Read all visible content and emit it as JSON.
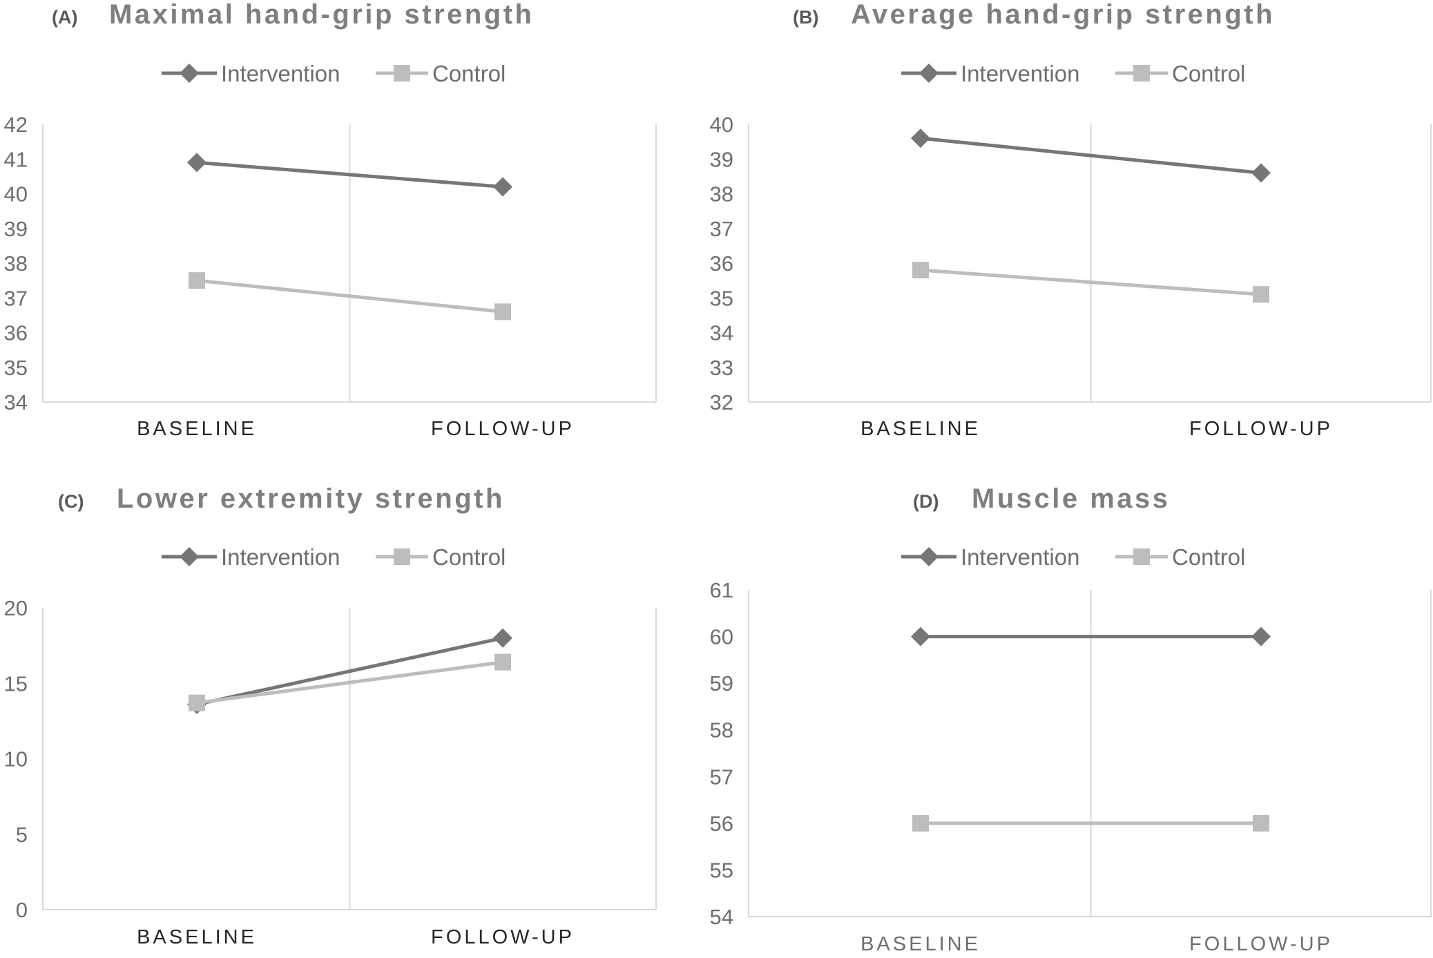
{
  "colors": {
    "intervention": "#767676",
    "control": "#bdbdbd",
    "axis": "#d9d9d9"
  },
  "chart_data": [
    {
      "type": "line",
      "panel": "(A)",
      "title": "Maximal hand-grip strength",
      "categories": [
        "BASELINE",
        "FOLLOW-UP"
      ],
      "series": [
        {
          "name": "Intervention",
          "values": [
            40.9,
            40.2
          ],
          "marker": "diamond"
        },
        {
          "name": "Control",
          "values": [
            37.5,
            36.6
          ],
          "marker": "square"
        }
      ],
      "ylim": [
        34,
        42
      ],
      "yticks": [
        34,
        35,
        36,
        37,
        38,
        39,
        40,
        41,
        42
      ],
      "legend": "top-center"
    },
    {
      "type": "line",
      "panel": "(B)",
      "title": "Average hand-grip strength",
      "categories": [
        "BASELINE",
        "FOLLOW-UP"
      ],
      "series": [
        {
          "name": "Intervention",
          "values": [
            39.6,
            38.6
          ],
          "marker": "diamond"
        },
        {
          "name": "Control",
          "values": [
            35.8,
            35.1
          ],
          "marker": "square"
        }
      ],
      "ylim": [
        32,
        40
      ],
      "yticks": [
        32,
        33,
        34,
        35,
        36,
        37,
        38,
        39,
        40
      ],
      "legend": "top-center"
    },
    {
      "type": "line",
      "panel": "(C)",
      "title": "Lower extremity strength",
      "categories": [
        "BASELINE",
        "FOLLOW-UP"
      ],
      "series": [
        {
          "name": "Intervention",
          "values": [
            13.6,
            18.0
          ],
          "marker": "diamond"
        },
        {
          "name": "Control",
          "values": [
            13.7,
            16.4
          ],
          "marker": "square"
        }
      ],
      "ylim": [
        0,
        20
      ],
      "yticks": [
        0,
        5,
        10,
        15,
        20
      ],
      "legend": "top-center"
    },
    {
      "type": "line",
      "panel": "(D)",
      "title": "Muscle mass",
      "categories": [
        "BASELINE",
        "FOLLOW-UP"
      ],
      "series": [
        {
          "name": "Intervention",
          "values": [
            60.0,
            60.0
          ],
          "marker": "diamond"
        },
        {
          "name": "Control",
          "values": [
            56.0,
            56.0
          ],
          "marker": "square"
        }
      ],
      "ylim": [
        54,
        61
      ],
      "yticks": [
        54,
        55,
        56,
        57,
        58,
        59,
        60,
        61
      ],
      "legend": "top-center"
    }
  ]
}
